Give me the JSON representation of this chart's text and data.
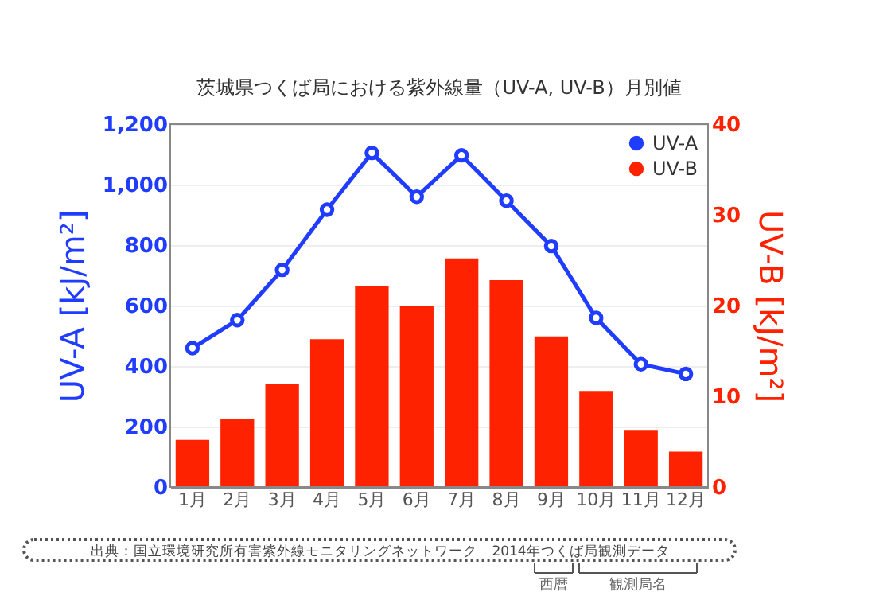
{
  "chart_data": {
    "type": "bar",
    "title": "茨城県つくば局における紫外線量（UV-A, UV-B）月別値",
    "categories": [
      "1月",
      "2月",
      "3月",
      "4月",
      "5月",
      "6月",
      "7月",
      "8月",
      "9月",
      "10月",
      "11月",
      "12月"
    ],
    "series": [
      {
        "name": "UV-A",
        "type": "line",
        "color": "#1f3cff",
        "marker": "circle",
        "values": [
          459,
          552,
          718,
          917,
          1105,
          960,
          1097,
          947,
          797,
          559,
          406,
          374
        ]
      },
      {
        "name": "UV-B",
        "axis": "y2",
        "color": "#ff2200",
        "values": [
          5.2,
          7.5,
          11.4,
          16.3,
          22.1,
          20.0,
          25.2,
          22.8,
          16.6,
          10.6,
          6.3,
          3.9
        ]
      }
    ],
    "ylabel": "UV-A [kJ/m²]",
    "y2label": "UV-B [kJ/m²]",
    "ylim": [
      0,
      1200
    ],
    "yticks": [
      0,
      {
        "value": 200,
        "label": "200"
      },
      {
        "value": 400,
        "label": "400"
      },
      {
        "value": 600,
        "label": "600"
      },
      {
        "value": 800,
        "label": "800"
      },
      {
        "value": 1000,
        "label": "1,000"
      },
      {
        "value": 1200,
        "label": "1,200"
      }
    ],
    "y2lim": [
      0,
      40
    ],
    "y2ticks": [
      0,
      10,
      20,
      30,
      40
    ],
    "grid": "y",
    "legend": "top right",
    "annotations": [
      "出典：国立環境研究所有害紫外線モニタリングネットワーク　2014年つくば局観測データ",
      "西暦",
      "観測局名"
    ]
  }
}
